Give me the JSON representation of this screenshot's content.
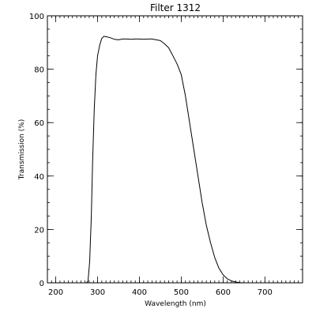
{
  "chart_data": {
    "type": "line",
    "title": "Filter 1312",
    "xlabel": "Wavelength (nm)",
    "ylabel": "Transmission (%)",
    "xlim": [
      180,
      790
    ],
    "ylim": [
      0,
      100
    ],
    "x_ticks": [
      200,
      300,
      400,
      500,
      600,
      700
    ],
    "y_ticks": [
      0,
      20,
      40,
      60,
      80,
      100
    ],
    "x_minor_step": 10,
    "y_minor_step": 5,
    "grid": false,
    "line_color": "#000000",
    "series": [
      {
        "x": [
          273,
          277,
          281,
          285,
          288,
          292,
          296,
          300,
          305,
          310,
          315,
          320,
          330,
          340,
          350,
          360,
          370,
          380,
          390,
          400,
          410,
          420,
          430,
          440,
          450,
          460,
          470,
          480,
          490,
          500,
          510,
          520,
          530,
          540,
          550,
          560,
          570,
          580,
          590,
          600,
          610,
          620,
          630,
          640,
          650
        ],
        "y": [
          0,
          0.5,
          8,
          25,
          45,
          65,
          78,
          85,
          89,
          91.5,
          92.3,
          92.2,
          91.8,
          91.2,
          91.0,
          91.3,
          91.3,
          91.2,
          91.3,
          91.3,
          91.2,
          91.3,
          91.3,
          91.0,
          90.7,
          89.5,
          88.0,
          85.0,
          82.0,
          78.0,
          70.0,
          60.0,
          50.0,
          40.0,
          30.0,
          21.5,
          15.0,
          9.5,
          5.5,
          3.0,
          1.5,
          0.7,
          0.3,
          0.1,
          0
        ]
      }
    ]
  }
}
